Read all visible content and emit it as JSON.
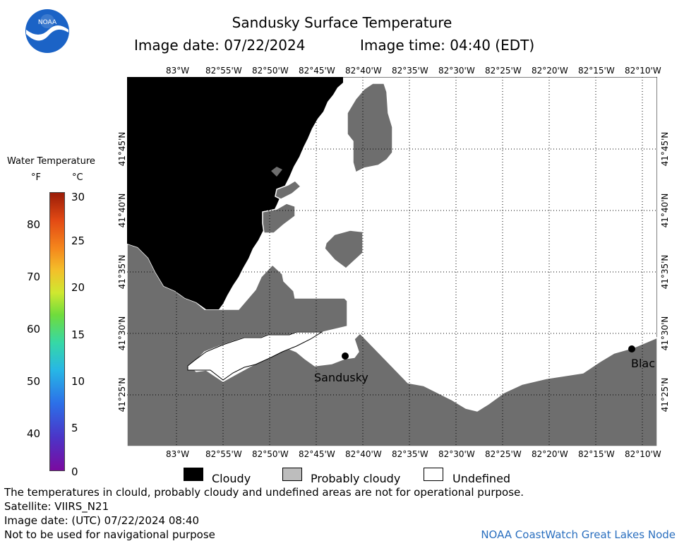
{
  "title": "Sandusky Surface Temperature",
  "image_date": "Image date: 07/22/2024",
  "image_time": "Image time: 04:40 (EDT)",
  "lon_ticks_top": [
    "83°W",
    "82°55'W",
    "82°50'W",
    "82°45'W",
    "82°40'W",
    "82°35'W",
    "82°30'W",
    "82°25'W",
    "82°20'W",
    "82°15'W",
    "82°10'W"
  ],
  "lon_ticks_bottom": [
    "83°W",
    "82°55'W",
    "82°50'W",
    "82°45'W",
    "82°40'W",
    "82°35'W",
    "82°30'W",
    "82°25'W",
    "82°20'W",
    "82°15'W",
    "82°10'W"
  ],
  "lat_ticks": [
    "41°45'N",
    "41°40'N",
    "41°35'N",
    "41°30'N",
    "41°25'N"
  ],
  "places": [
    {
      "name": "Sandusky"
    },
    {
      "name": "Blac"
    }
  ],
  "colorbar": {
    "title": "Water Temperature",
    "unit_f": "°F",
    "unit_c": "°C",
    "f_labels": [
      "80",
      "70",
      "60",
      "50",
      "40"
    ],
    "c_labels": [
      "30",
      "25",
      "20",
      "15",
      "10",
      "5",
      "0"
    ],
    "c_range": [
      0,
      30
    ]
  },
  "legend": {
    "cloudy": "Cloudy",
    "probably_cloudy": "Probably cloudy",
    "undefined": "Undefined",
    "colors": {
      "cloudy": "#000000",
      "probably_cloudy": "#bdbdbd",
      "undefined": "#ffffff",
      "land": "#6e6e6e"
    }
  },
  "footer": {
    "note": "The temperatures in clould, probably cloudy and undefined areas are not for operational purpose.",
    "satellite": "Satellite: VIIRS_N21",
    "utc_date": "Image date: (UTC) 07/22/2024  08:40",
    "nav": "Not to be used for navigational purpose",
    "node": "NOAA CoastWatch Great Lakes Node"
  },
  "logo_text": "NOAA"
}
